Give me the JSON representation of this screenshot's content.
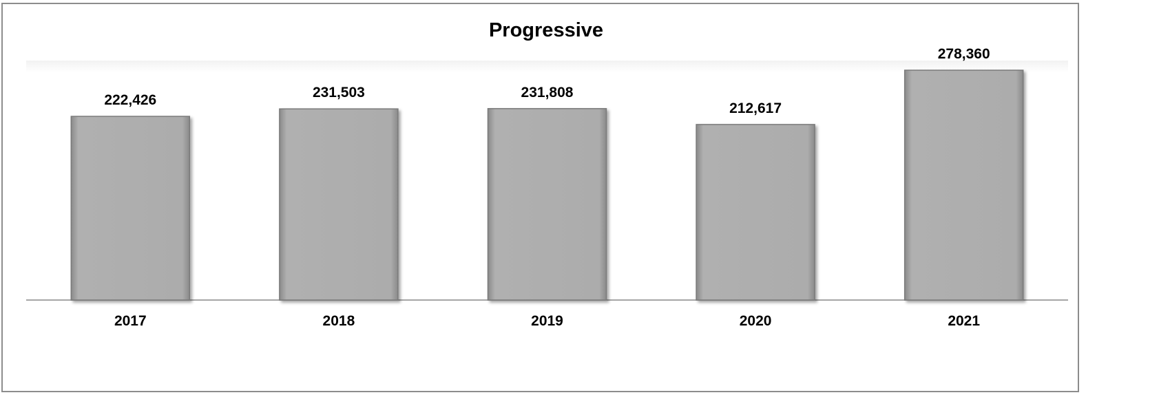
{
  "chart_data": {
    "type": "bar",
    "title": "Progressive",
    "categories": [
      "2017",
      "2018",
      "2019",
      "2020",
      "2021"
    ],
    "values": [
      222426,
      231503,
      231808,
      212617,
      278360
    ],
    "value_labels": [
      "222,426",
      "231,503",
      "231,808",
      "212,617",
      "278,360"
    ],
    "ylim": [
      0,
      290000
    ],
    "grid": false,
    "legend": "none",
    "colors": {
      "bar": "#acacac",
      "bar_edge": "#7a7a7a",
      "axis": "#a6a6a6"
    }
  }
}
